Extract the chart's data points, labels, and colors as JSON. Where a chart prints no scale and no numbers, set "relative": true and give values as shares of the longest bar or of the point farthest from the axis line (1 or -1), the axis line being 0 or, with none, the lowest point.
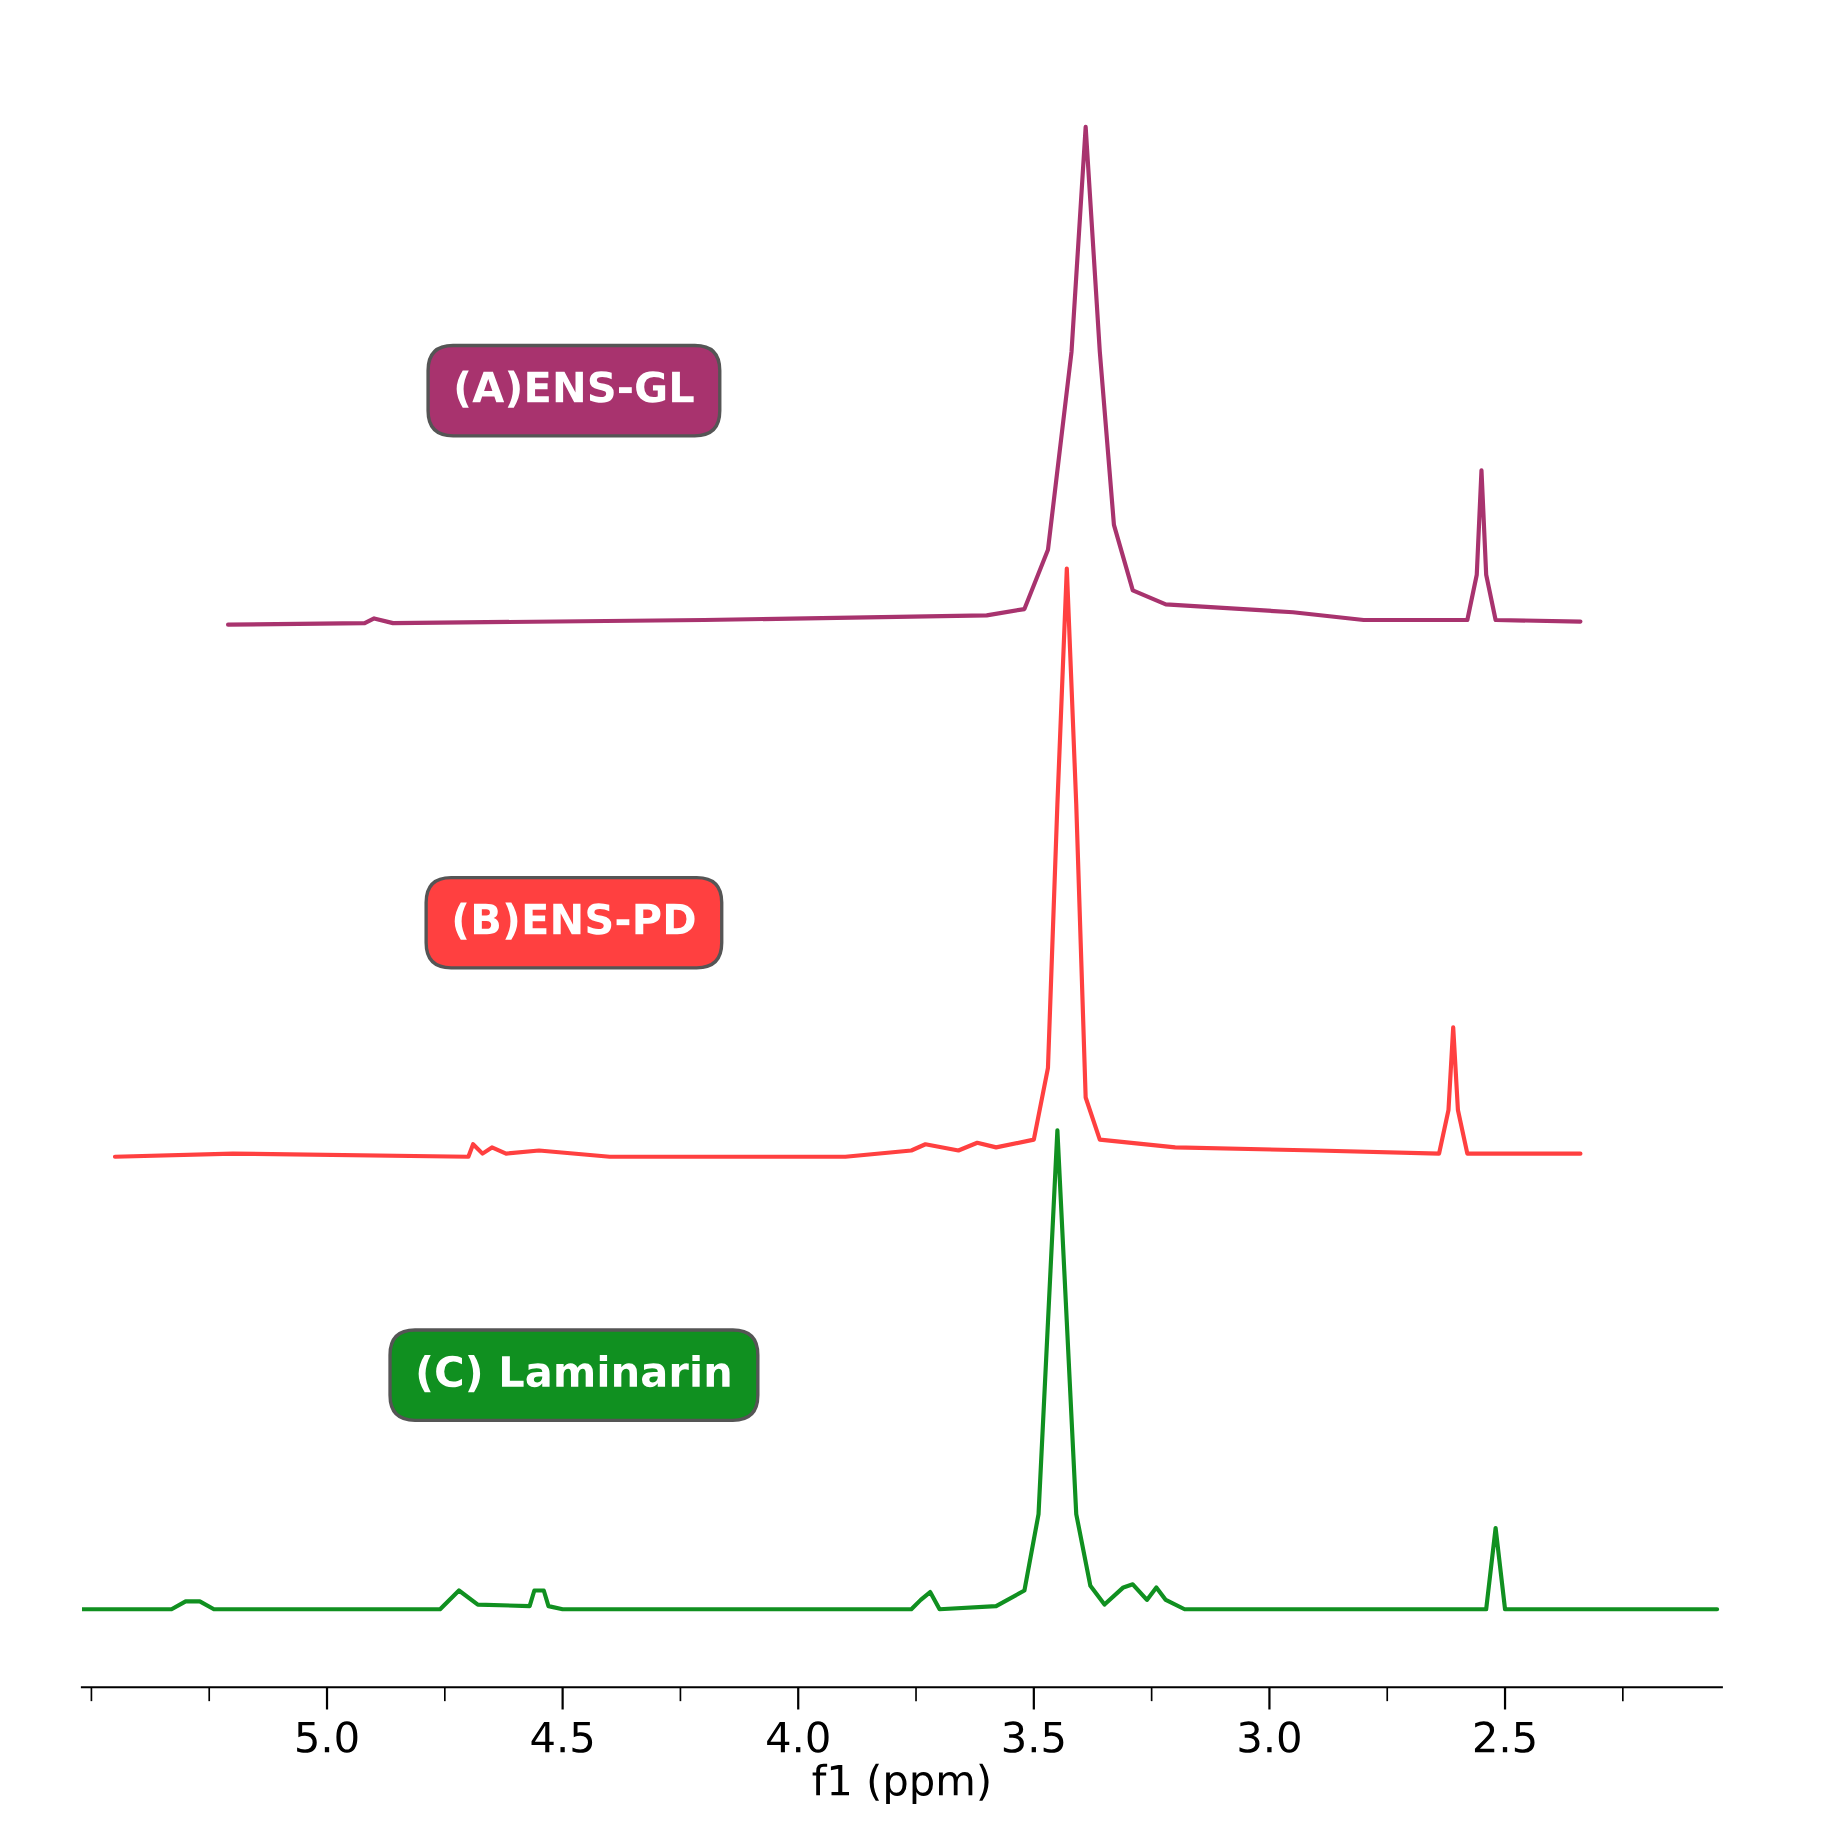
{
  "chart_data": {
    "type": "line",
    "relative": true,
    "xlim": [
      5.52,
      2.04
    ],
    "xticks": [
      {
        "value": 5.0,
        "label": "5.0"
      },
      {
        "value": 4.5,
        "label": "4.5"
      },
      {
        "value": 4.0,
        "label": "4.0"
      },
      {
        "value": 3.5,
        "label": "3.5"
      },
      {
        "value": 3.0,
        "label": "3.0"
      },
      {
        "value": 2.5,
        "label": "2.5"
      }
    ],
    "xlabel": "f1 (ppm)",
    "series": [
      {
        "name": "(A)ENS-GL",
        "color": "#a8336e",
        "x": [
          5.21,
          4.92,
          4.9,
          4.86,
          4.2,
          3.6,
          3.52,
          3.47,
          3.42,
          3.39,
          3.36,
          3.33,
          3.29,
          3.22,
          2.95,
          2.8,
          2.58,
          2.56,
          2.55,
          2.54,
          2.52,
          2.34
        ],
        "values": [
          0.681,
          0.682,
          0.685,
          0.682,
          0.684,
          0.687,
          0.691,
          0.729,
          0.856,
          1.0,
          0.856,
          0.745,
          0.703,
          0.694,
          0.689,
          0.684,
          0.684,
          0.713,
          0.78,
          0.713,
          0.684,
          0.683
        ]
      },
      {
        "name": "(B)ENS-PD",
        "color": "#ff4040",
        "x": [
          5.45,
          5.2,
          4.7,
          4.69,
          4.67,
          4.65,
          4.62,
          4.55,
          4.4,
          3.9,
          3.76,
          3.73,
          3.66,
          3.62,
          3.58,
          3.5,
          3.47,
          3.45,
          3.43,
          3.41,
          3.39,
          3.36,
          3.2,
          2.9,
          2.64,
          2.62,
          2.61,
          2.6,
          2.58,
          2.34
        ],
        "values": [
          0.34,
          0.342,
          0.34,
          0.348,
          0.342,
          0.346,
          0.342,
          0.344,
          0.34,
          0.34,
          0.344,
          0.348,
          0.344,
          0.349,
          0.346,
          0.351,
          0.397,
          0.566,
          0.717,
          0.566,
          0.378,
          0.351,
          0.346,
          0.344,
          0.342,
          0.37,
          0.423,
          0.37,
          0.342,
          0.342
        ]
      },
      {
        "name": "(C) Laminarin",
        "color": "#109020",
        "x": [
          5.52,
          5.33,
          5.3,
          5.27,
          5.24,
          4.76,
          4.72,
          4.68,
          4.57,
          4.56,
          4.54,
          4.53,
          4.5,
          3.76,
          3.74,
          3.72,
          3.7,
          3.58,
          3.52,
          3.49,
          3.47,
          3.45,
          3.43,
          3.41,
          3.38,
          3.35,
          3.31,
          3.29,
          3.26,
          3.24,
          3.22,
          3.18,
          2.54,
          2.52,
          2.5,
          2.05
        ],
        "values": [
          0.05,
          0.05,
          0.055,
          0.055,
          0.05,
          0.05,
          0.062,
          0.053,
          0.052,
          0.062,
          0.062,
          0.052,
          0.05,
          0.05,
          0.056,
          0.061,
          0.05,
          0.052,
          0.062,
          0.111,
          0.234,
          0.357,
          0.234,
          0.111,
          0.065,
          0.053,
          0.064,
          0.066,
          0.056,
          0.064,
          0.056,
          0.05,
          0.05,
          0.102,
          0.05,
          0.05
        ]
      }
    ]
  }
}
